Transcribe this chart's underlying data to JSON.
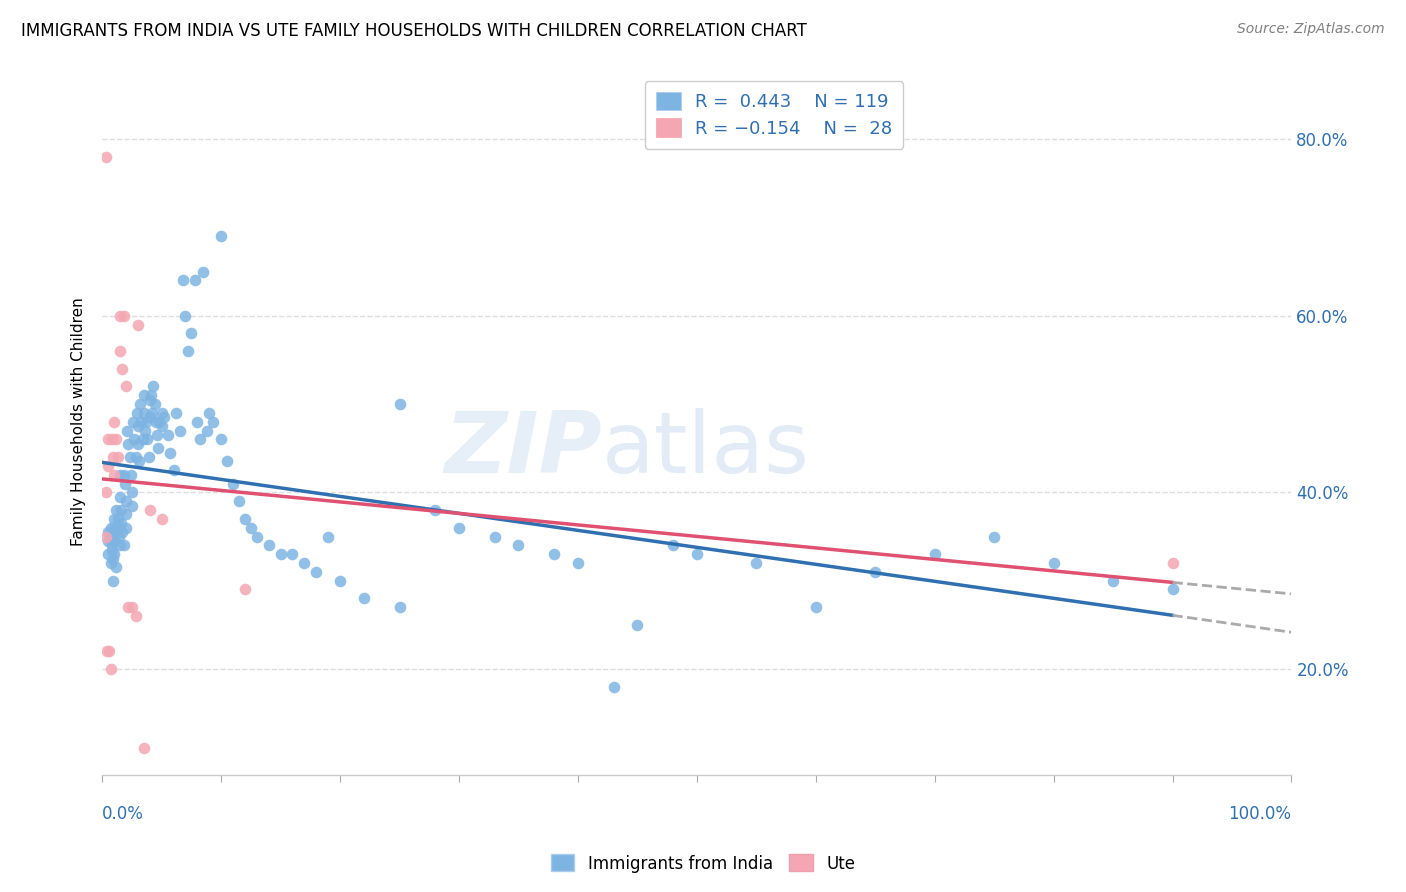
{
  "title": "IMMIGRANTS FROM INDIA VS UTE FAMILY HOUSEHOLDS WITH CHILDREN CORRELATION CHART",
  "source": "Source: ZipAtlas.com",
  "ylabel": "Family Households with Children",
  "ytick_labels": [
    "20.0%",
    "40.0%",
    "60.0%",
    "80.0%"
  ],
  "ytick_values": [
    0.2,
    0.4,
    0.6,
    0.8
  ],
  "legend_blue_label": "Immigrants from India",
  "legend_pink_label": "Ute",
  "blue_color": "#7EB4E2",
  "pink_color": "#F4A7B2",
  "trend_blue_color": "#3070B0",
  "trend_pink_color": "#E05070",
  "trend_dashed_color": "#AAAAAA",
  "blue_scatter_x": [
    0.005,
    0.005,
    0.005,
    0.007,
    0.007,
    0.008,
    0.008,
    0.008,
    0.009,
    0.009,
    0.01,
    0.01,
    0.01,
    0.01,
    0.01,
    0.012,
    0.012,
    0.013,
    0.013,
    0.014,
    0.015,
    0.015,
    0.015,
    0.016,
    0.016,
    0.017,
    0.018,
    0.018,
    0.019,
    0.02,
    0.02,
    0.02,
    0.021,
    0.022,
    0.023,
    0.024,
    0.025,
    0.025,
    0.026,
    0.027,
    0.028,
    0.029,
    0.03,
    0.03,
    0.031,
    0.032,
    0.033,
    0.034,
    0.035,
    0.035,
    0.036,
    0.037,
    0.038,
    0.039,
    0.04,
    0.04,
    0.041,
    0.042,
    0.043,
    0.044,
    0.045,
    0.046,
    0.047,
    0.048,
    0.05,
    0.05,
    0.052,
    0.055,
    0.057,
    0.06,
    0.062,
    0.065,
    0.068,
    0.07,
    0.072,
    0.075,
    0.078,
    0.08,
    0.082,
    0.085,
    0.088,
    0.09,
    0.093,
    0.1,
    0.1,
    0.105,
    0.11,
    0.115,
    0.12,
    0.125,
    0.13,
    0.14,
    0.15,
    0.16,
    0.17,
    0.18,
    0.19,
    0.2,
    0.22,
    0.25,
    0.28,
    0.3,
    0.33,
    0.35,
    0.38,
    0.4,
    0.43,
    0.45,
    0.48,
    0.5,
    0.55,
    0.6,
    0.65,
    0.7,
    0.75,
    0.8,
    0.85,
    0.9,
    0.25
  ],
  "blue_scatter_y": [
    0.33,
    0.345,
    0.355,
    0.36,
    0.32,
    0.335,
    0.34,
    0.35,
    0.325,
    0.3,
    0.355,
    0.36,
    0.37,
    0.345,
    0.33,
    0.315,
    0.38,
    0.37,
    0.36,
    0.35,
    0.34,
    0.42,
    0.395,
    0.38,
    0.365,
    0.355,
    0.34,
    0.42,
    0.41,
    0.39,
    0.375,
    0.36,
    0.47,
    0.455,
    0.44,
    0.42,
    0.4,
    0.385,
    0.48,
    0.46,
    0.44,
    0.49,
    0.475,
    0.455,
    0.435,
    0.5,
    0.48,
    0.46,
    0.51,
    0.49,
    0.47,
    0.48,
    0.46,
    0.44,
    0.505,
    0.485,
    0.51,
    0.49,
    0.52,
    0.5,
    0.48,
    0.465,
    0.45,
    0.48,
    0.49,
    0.475,
    0.485,
    0.465,
    0.445,
    0.425,
    0.49,
    0.47,
    0.64,
    0.6,
    0.56,
    0.58,
    0.64,
    0.48,
    0.46,
    0.65,
    0.47,
    0.49,
    0.48,
    0.69,
    0.46,
    0.435,
    0.41,
    0.39,
    0.37,
    0.36,
    0.35,
    0.34,
    0.33,
    0.33,
    0.32,
    0.31,
    0.35,
    0.3,
    0.28,
    0.27,
    0.38,
    0.36,
    0.35,
    0.34,
    0.33,
    0.32,
    0.18,
    0.25,
    0.34,
    0.33,
    0.32,
    0.27,
    0.31,
    0.33,
    0.35,
    0.32,
    0.3,
    0.29,
    0.5
  ],
  "pink_scatter_x": [
    0.003,
    0.003,
    0.003,
    0.004,
    0.005,
    0.005,
    0.006,
    0.007,
    0.008,
    0.009,
    0.01,
    0.01,
    0.012,
    0.013,
    0.015,
    0.015,
    0.017,
    0.018,
    0.02,
    0.022,
    0.025,
    0.028,
    0.03,
    0.035,
    0.04,
    0.05,
    0.12,
    0.9
  ],
  "pink_scatter_y": [
    0.78,
    0.35,
    0.4,
    0.22,
    0.43,
    0.46,
    0.22,
    0.2,
    0.46,
    0.44,
    0.42,
    0.48,
    0.46,
    0.44,
    0.6,
    0.56,
    0.54,
    0.6,
    0.52,
    0.27,
    0.27,
    0.26,
    0.59,
    0.11,
    0.38,
    0.37,
    0.29,
    0.32
  ],
  "xlim": [
    0.0,
    1.0
  ],
  "ylim": [
    0.08,
    0.88
  ],
  "watermark_zip": "ZIP",
  "watermark_atlas": "atlas",
  "background_color": "#FFFFFF",
  "grid_color": "#DDDDDD"
}
